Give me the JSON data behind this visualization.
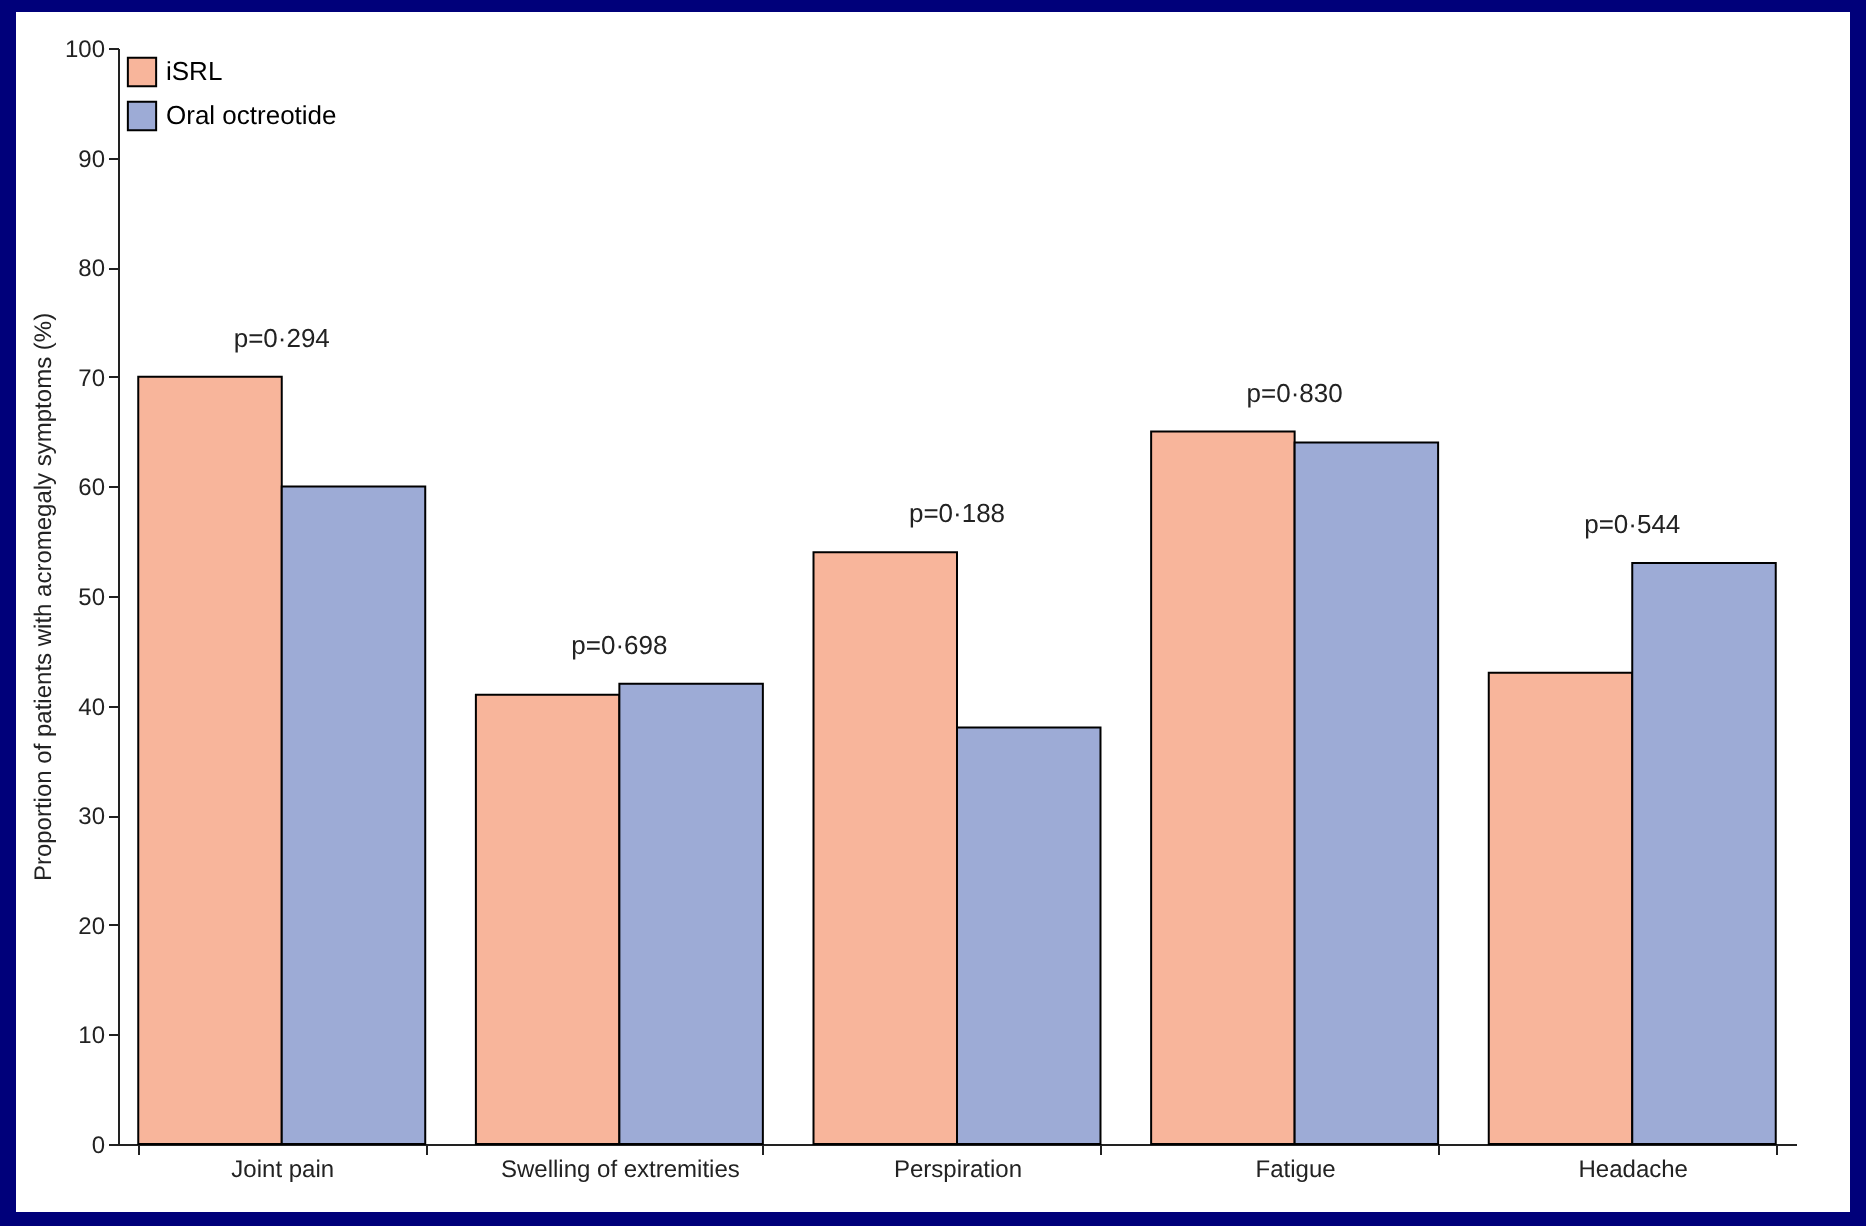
{
  "chart_data": {
    "type": "bar",
    "ylabel": "Proportion of patients with acromegaly symptoms (%)",
    "categories": [
      "Joint pain",
      "Swelling of extremities",
      "Perspiration",
      "Fatigue",
      "Headache"
    ],
    "series": [
      {
        "name": "iSRL",
        "color": "#f8b59b",
        "values": [
          70,
          41,
          54,
          65,
          43
        ]
      },
      {
        "name": "Oral octreotide",
        "color": "#9dabd6",
        "values": [
          60,
          42,
          38,
          64,
          53
        ]
      }
    ],
    "ylim": [
      0,
      100
    ],
    "yticks": [
      0,
      10,
      20,
      30,
      40,
      50,
      60,
      70,
      80,
      90,
      100
    ],
    "grid": false,
    "legend": "top left",
    "annotations": [
      "p=0·294",
      "p=0·698",
      "p=0·188",
      "p=0·830",
      "p=0·544"
    ]
  }
}
